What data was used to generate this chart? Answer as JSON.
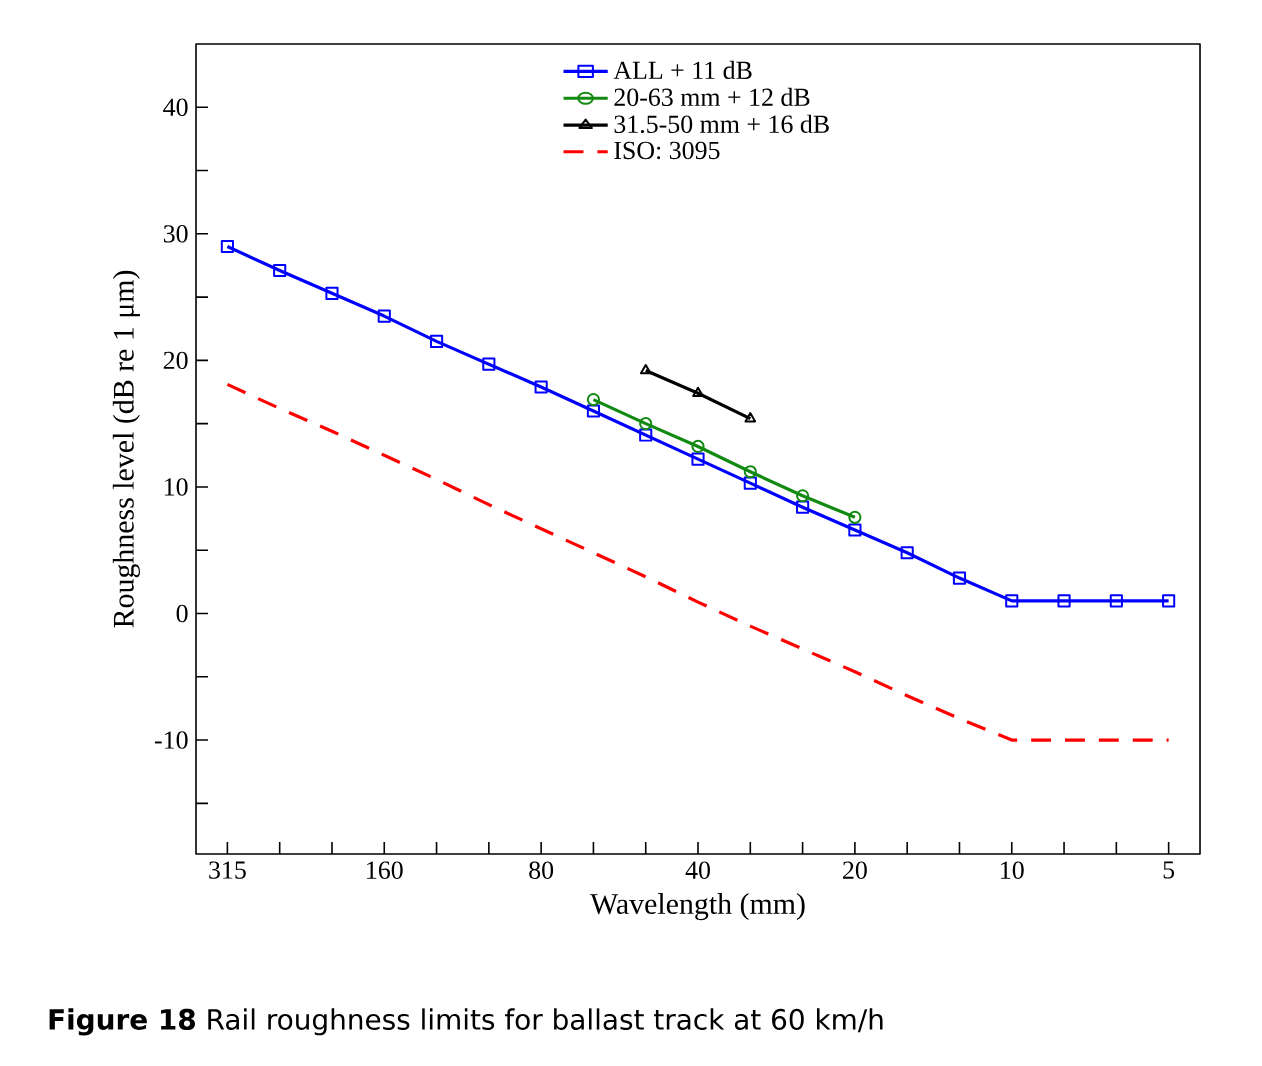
{
  "chart_data": {
    "type": "line",
    "xlabel": "Wavelength (mm)",
    "ylabel": "Roughness level (dB re 1 μm)",
    "categories": [
      "315",
      null,
      null,
      "160",
      null,
      null,
      "80",
      null,
      null,
      "40",
      null,
      null,
      "20",
      null,
      null,
      "10",
      null,
      null,
      "5"
    ],
    "series": [
      {
        "name": "ALL + 11 dB",
        "color": "#0000ff",
        "marker": "square",
        "line_style": "solid",
        "values": [
          29,
          27.1,
          25.3,
          23.5,
          21.5,
          19.7,
          17.9,
          16,
          14.1,
          12.2,
          10.3,
          8.4,
          6.6,
          4.8,
          2.8,
          1,
          1,
          1,
          1
        ]
      },
      {
        "name": "20-63 mm + 12 dB",
        "color": "#128a12",
        "marker": "circle",
        "line_style": "solid",
        "values": [
          null,
          null,
          null,
          null,
          null,
          null,
          null,
          16.9,
          15,
          13.2,
          11.2,
          9.3,
          7.6,
          null,
          null,
          null,
          null,
          null,
          null
        ]
      },
      {
        "name": "31.5-50 mm + 16 dB",
        "color": "#000000",
        "marker": "triangle",
        "line_style": "solid",
        "values": [
          null,
          null,
          null,
          null,
          null,
          null,
          null,
          null,
          19.2,
          17.4,
          15.4,
          null,
          null,
          null,
          null,
          null,
          null,
          null,
          null
        ]
      },
      {
        "name": "ISO: 3095",
        "color": "#ff0000",
        "marker": "none",
        "line_style": "dashed",
        "values": [
          18.1,
          16.2,
          14.4,
          12.5,
          10.6,
          8.6,
          6.7,
          4.8,
          2.9,
          0.9,
          -1,
          -2.8,
          -4.6,
          -6.5,
          -8.3,
          -10,
          -10,
          -10,
          -10
        ]
      }
    ],
    "ylim": [
      -19,
      45
    ],
    "yticks": [
      {
        "value": -15,
        "label": null
      },
      -10,
      {
        "value": -5,
        "label": null
      },
      0,
      {
        "value": 5,
        "label": null
      },
      10,
      {
        "value": 15,
        "label": null
      },
      20,
      {
        "value": 25,
        "label": null
      },
      30,
      {
        "value": 35,
        "label": null
      },
      40
    ],
    "legend": "top",
    "grid": false,
    "annotations": [
      "**Figure 18** Rail roughness limits for ballast track at 60 km/h"
    ]
  }
}
